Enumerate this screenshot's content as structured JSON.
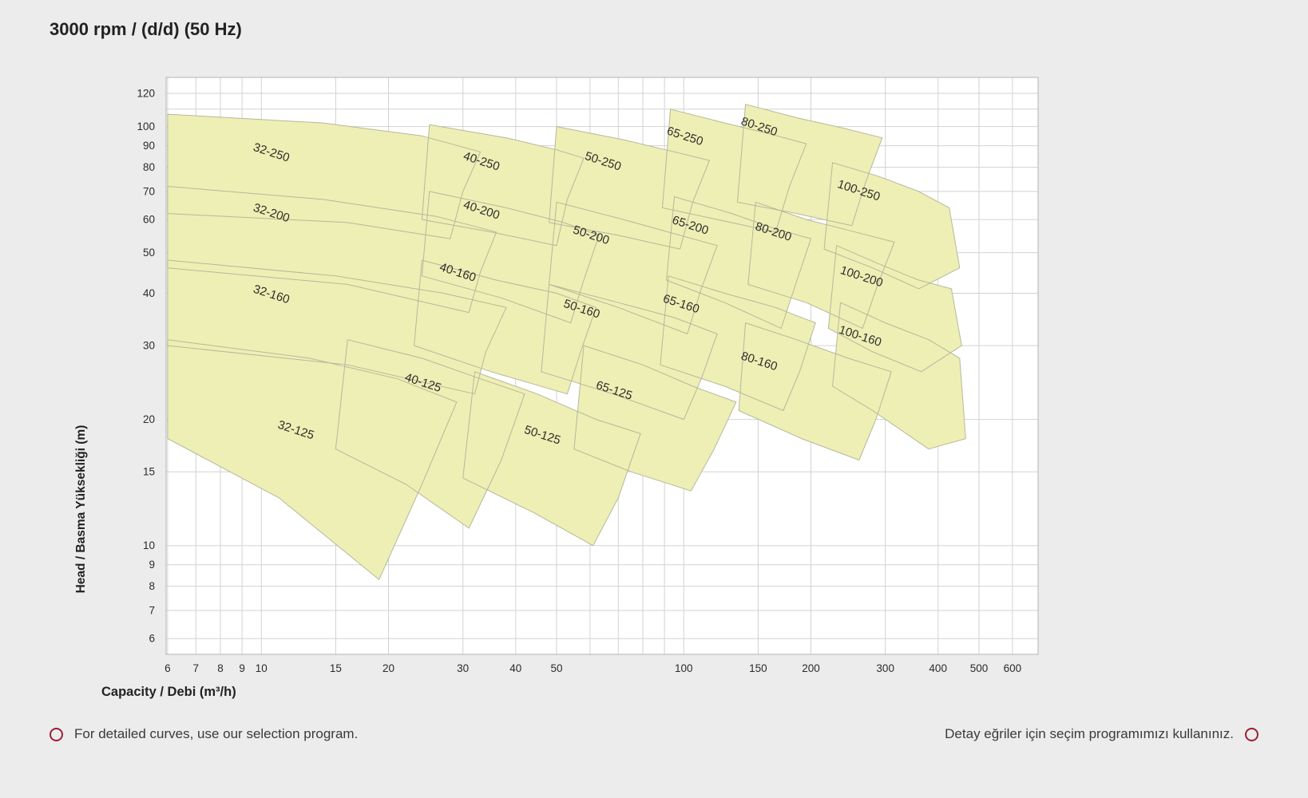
{
  "title": "3000 rpm / (d/d) (50 Hz)",
  "footer": {
    "left": "For detailed curves, use our selection program.",
    "right": "Detay eğriler için seçim programımızı kullanınız."
  },
  "colors": {
    "background": "#ececec",
    "plot_bg": "#ffffff",
    "grid": "#d2d2d2",
    "plot_border": "#b3b3b3",
    "region_fill": "#eeefb4",
    "region_stroke": "#b7b79c",
    "label_color": "#2d2d2d",
    "tick_color": "#2b2b2b",
    "marker_ring": "#9b2033"
  },
  "chart_data": {
    "type": "area",
    "title": "3000 rpm / (d/d) (50 Hz)",
    "x_axis": {
      "label": "Capacity / Debi (m³/h)",
      "scale": "log",
      "min": 5.95,
      "max": 690,
      "ticks_labeled": [
        6,
        7,
        8,
        9,
        10,
        15,
        20,
        30,
        40,
        50,
        100,
        150,
        200,
        300,
        400,
        500,
        600
      ],
      "grid": [
        6,
        7,
        8,
        9,
        10,
        15,
        20,
        30,
        40,
        50,
        60,
        70,
        80,
        90,
        100,
        150,
        200,
        300,
        400,
        500,
        600
      ]
    },
    "y_axis": {
      "label": "Head / Basma Yüksekliği (m)",
      "scale": "log",
      "min": 5.5,
      "max": 131,
      "ticks_labeled": [
        120,
        100,
        90,
        80,
        70,
        60,
        50,
        40,
        30,
        20,
        15,
        10,
        9,
        8,
        7,
        6
      ],
      "grid": [
        6,
        7,
        8,
        9,
        10,
        15,
        20,
        30,
        40,
        50,
        60,
        70,
        80,
        90,
        100,
        110,
        120
      ]
    },
    "label_rotation": 18,
    "regions": [
      {
        "label": "32-250",
        "label_at": [
          10.5,
          85
        ],
        "points": [
          [
            6,
            107
          ],
          [
            14,
            102
          ],
          [
            24,
            95
          ],
          [
            33,
            87
          ],
          [
            30,
            70
          ],
          [
            28,
            54
          ],
          [
            16,
            59
          ],
          [
            6,
            62
          ]
        ]
      },
      {
        "label": "40-250",
        "label_at": [
          33,
          81
        ],
        "points": [
          [
            25,
            101
          ],
          [
            38,
            94
          ],
          [
            50,
            88
          ],
          [
            58,
            84
          ],
          [
            53,
            67
          ],
          [
            50,
            52
          ],
          [
            35,
            56
          ],
          [
            24,
            60
          ]
        ]
      },
      {
        "label": "50-250",
        "label_at": [
          64,
          81
        ],
        "points": [
          [
            50,
            100
          ],
          [
            72,
            93
          ],
          [
            95,
            87
          ],
          [
            115,
            83
          ],
          [
            105,
            66
          ],
          [
            98,
            51
          ],
          [
            70,
            55
          ],
          [
            48,
            59
          ]
        ]
      },
      {
        "label": "65-250",
        "label_at": [
          100,
          93
        ],
        "points": [
          [
            93,
            110
          ],
          [
            125,
            102
          ],
          [
            160,
            96
          ],
          [
            195,
            91
          ],
          [
            178,
            72
          ],
          [
            165,
            56
          ],
          [
            120,
            60
          ],
          [
            89,
            64
          ]
        ]
      },
      {
        "label": "80-250",
        "label_at": [
          150,
          98
        ],
        "points": [
          [
            140,
            113
          ],
          [
            185,
            105
          ],
          [
            240,
            99
          ],
          [
            295,
            94
          ],
          [
            270,
            74
          ],
          [
            250,
            58
          ],
          [
            185,
            62
          ],
          [
            134,
            66
          ]
        ]
      },
      {
        "label": "100-250",
        "label_at": [
          258,
          69
        ],
        "points": [
          [
            225,
            82
          ],
          [
            290,
            76
          ],
          [
            360,
            70
          ],
          [
            425,
            64
          ],
          [
            450,
            46
          ],
          [
            360,
            41
          ],
          [
            280,
            46
          ],
          [
            215,
            51
          ]
        ]
      },
      {
        "label": "32-200",
        "label_at": [
          10.5,
          61
        ],
        "points": [
          [
            6,
            72
          ],
          [
            14,
            67
          ],
          [
            26,
            61
          ],
          [
            36,
            56
          ],
          [
            33,
            45
          ],
          [
            31,
            36
          ],
          [
            16,
            42
          ],
          [
            6,
            46
          ]
        ]
      },
      {
        "label": "40-200",
        "label_at": [
          33,
          62
        ],
        "points": [
          [
            25,
            70
          ],
          [
            38,
            64
          ],
          [
            52,
            59
          ],
          [
            63,
            55
          ],
          [
            58,
            43
          ],
          [
            54,
            34
          ],
          [
            37,
            39
          ],
          [
            24,
            44
          ]
        ]
      },
      {
        "label": "50-200",
        "label_at": [
          60,
          54
        ],
        "points": [
          [
            50,
            66
          ],
          [
            72,
            60
          ],
          [
            98,
            55
          ],
          [
            120,
            52
          ],
          [
            110,
            41
          ],
          [
            102,
            32
          ],
          [
            70,
            37
          ],
          [
            48,
            42
          ]
        ]
      },
      {
        "label": "65-200",
        "label_at": [
          103,
          57
        ],
        "points": [
          [
            95,
            68
          ],
          [
            130,
            62
          ],
          [
            165,
            57
          ],
          [
            200,
            54
          ],
          [
            184,
            42
          ],
          [
            170,
            33
          ],
          [
            125,
            38
          ],
          [
            91,
            43
          ]
        ]
      },
      {
        "label": "80-200",
        "label_at": [
          162,
          55
        ],
        "points": [
          [
            148,
            66
          ],
          [
            195,
            60
          ],
          [
            255,
            56
          ],
          [
            315,
            53
          ],
          [
            288,
            42
          ],
          [
            265,
            33
          ],
          [
            195,
            38
          ],
          [
            142,
            42
          ]
        ]
      },
      {
        "label": "100-200",
        "label_at": [
          262,
          43
        ],
        "points": [
          [
            230,
            52
          ],
          [
            290,
            47
          ],
          [
            360,
            43
          ],
          [
            430,
            41
          ],
          [
            455,
            30
          ],
          [
            365,
            26
          ],
          [
            280,
            29
          ],
          [
            220,
            33
          ]
        ]
      },
      {
        "label": "32-160",
        "label_at": [
          10.5,
          39
        ],
        "points": [
          [
            6,
            48
          ],
          [
            15,
            44
          ],
          [
            27,
            40
          ],
          [
            38,
            37
          ],
          [
            34,
            29
          ],
          [
            32,
            23
          ],
          [
            16,
            27
          ],
          [
            6,
            30
          ]
        ]
      },
      {
        "label": "40-160",
        "label_at": [
          29,
          44
        ],
        "points": [
          [
            24,
            48
          ],
          [
            36,
            43
          ],
          [
            50,
            40
          ],
          [
            62,
            37
          ],
          [
            57,
            29
          ],
          [
            53,
            23
          ],
          [
            35,
            26
          ],
          [
            23,
            30
          ]
        ]
      },
      {
        "label": "50-160",
        "label_at": [
          57,
          36
        ],
        "points": [
          [
            48,
            42
          ],
          [
            70,
            38
          ],
          [
            95,
            35
          ],
          [
            120,
            32
          ],
          [
            110,
            25
          ],
          [
            100,
            20
          ],
          [
            68,
            23
          ],
          [
            46,
            26
          ]
        ]
      },
      {
        "label": "65-160",
        "label_at": [
          98,
          37
        ],
        "points": [
          [
            92,
            44
          ],
          [
            125,
            40
          ],
          [
            165,
            37
          ],
          [
            205,
            34
          ],
          [
            188,
            26
          ],
          [
            172,
            21
          ],
          [
            125,
            24
          ],
          [
            88,
            27
          ]
        ]
      },
      {
        "label": "80-160",
        "label_at": [
          150,
          27
        ],
        "points": [
          [
            140,
            34
          ],
          [
            185,
            31
          ],
          [
            245,
            28
          ],
          [
            310,
            26
          ],
          [
            285,
            20
          ],
          [
            260,
            16
          ],
          [
            190,
            18
          ],
          [
            135,
            21
          ]
        ]
      },
      {
        "label": "100-160",
        "label_at": [
          260,
          31
        ],
        "points": [
          [
            235,
            38
          ],
          [
            300,
            34
          ],
          [
            380,
            31
          ],
          [
            450,
            28
          ],
          [
            465,
            18
          ],
          [
            380,
            17
          ],
          [
            280,
            21
          ],
          [
            225,
            24
          ]
        ]
      },
      {
        "label": "32-125",
        "label_at": [
          12,
          18.5
        ],
        "points": [
          [
            6,
            31
          ],
          [
            13,
            28
          ],
          [
            21,
            25
          ],
          [
            29,
            22
          ],
          [
            24,
            14
          ],
          [
            19,
            8.3
          ],
          [
            11,
            13
          ],
          [
            6,
            18
          ]
        ]
      },
      {
        "label": "40-125",
        "label_at": [
          24,
          24
        ],
        "points": [
          [
            16,
            31
          ],
          [
            24,
            28
          ],
          [
            33,
            25
          ],
          [
            42,
            23
          ],
          [
            37,
            16
          ],
          [
            31,
            11
          ],
          [
            22,
            14
          ],
          [
            15,
            17
          ]
        ]
      },
      {
        "label": "50-125",
        "label_at": [
          46,
          18
        ],
        "points": [
          [
            32,
            26
          ],
          [
            45,
            23
          ],
          [
            62,
            20
          ],
          [
            79,
            18.5
          ],
          [
            70,
            13
          ],
          [
            61,
            10
          ],
          [
            44,
            12
          ],
          [
            30,
            14.5
          ]
        ]
      },
      {
        "label": "65-125",
        "label_at": [
          68,
          23
        ],
        "points": [
          [
            58,
            30
          ],
          [
            80,
            27
          ],
          [
            105,
            24
          ],
          [
            133,
            22
          ],
          [
            118,
            17
          ],
          [
            104,
            13.5
          ],
          [
            75,
            15
          ],
          [
            55,
            17
          ]
        ]
      }
    ]
  }
}
